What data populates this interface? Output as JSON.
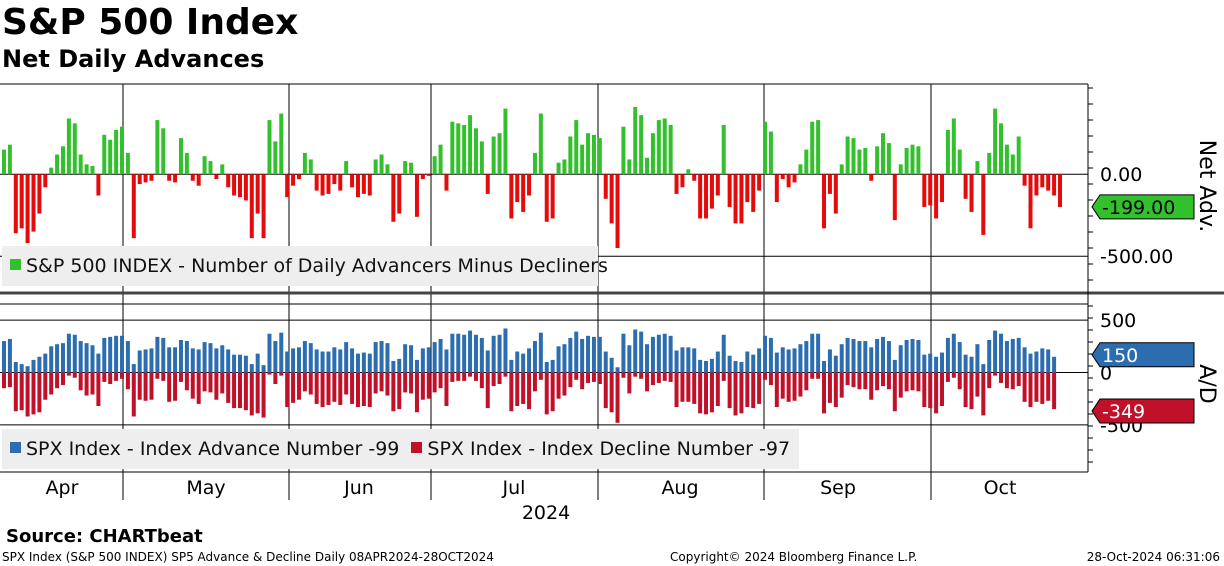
{
  "header": {
    "title": "S&P 500 Index",
    "subtitle": "Net Daily Advances"
  },
  "footer": {
    "source": "Source: CHARTbeat",
    "left": "SPX Index (S&P 500 INDEX) SP5 Advance & Decline  Daily 08APR2024-28OCT2024",
    "center": "Copyright© 2024 Bloomberg Finance L.P.",
    "right": "28-Oct-2024 06:31:06"
  },
  "colors": {
    "green": "#33c02d",
    "red": "#c1102a",
    "blue": "#2c6db0",
    "redBar": "#e50b0b"
  },
  "legend": {
    "top": "S&P 500 INDEX - Number of Daily Advancers Minus Decliners",
    "bottom_adv": "SPX Index  - Index Advance Number -99",
    "bottom_dec": "SPX Index  - Index Decline Number -97"
  },
  "chart_data": [
    {
      "type": "bar",
      "title": "Net Daily Advances",
      "ylabel": "Net Adv.",
      "ylim": [
        -700,
        550
      ],
      "yticks": [
        "0.00",
        "-500.00"
      ],
      "ytick_values": [
        0,
        -500
      ],
      "last_value_label": "-199.00",
      "values": [
        150,
        180,
        -360,
        -330,
        -420,
        -350,
        -240,
        -80,
        40,
        120,
        170,
        340,
        310,
        120,
        60,
        50,
        -130,
        240,
        210,
        270,
        290,
        130,
        -390,
        -60,
        -50,
        -40,
        330,
        280,
        -40,
        -50,
        220,
        130,
        -40,
        -70,
        110,
        80,
        -30,
        60,
        -80,
        -130,
        -140,
        -160,
        -390,
        -240,
        -390,
        330,
        200,
        370,
        -140,
        -70,
        -30,
        130,
        90,
        -100,
        -130,
        -120,
        -60,
        -100,
        80,
        -80,
        -140,
        -120,
        -130,
        90,
        120,
        60,
        -290,
        -240,
        80,
        70,
        -260,
        -30,
        -10,
        110,
        180,
        -100,
        320,
        310,
        300,
        360,
        280,
        200,
        -120,
        230,
        250,
        400,
        -270,
        -170,
        -230,
        -130,
        130,
        370,
        -290,
        -270,
        70,
        90,
        230,
        330,
        180,
        250,
        240,
        220,
        -150,
        -300,
        -450,
        290,
        90,
        410,
        360,
        100,
        250,
        330,
        340,
        300,
        -120,
        -80,
        30,
        -40,
        -270,
        -270,
        -210,
        -130,
        300,
        -200,
        -300,
        -300,
        -170,
        -230,
        -100,
        320,
        260,
        -170,
        -30,
        -80,
        -50,
        60,
        150,
        320,
        330,
        -330,
        -120,
        -240,
        60,
        230,
        220,
        150,
        160,
        -40,
        170,
        250,
        190,
        -280,
        60,
        160,
        180,
        170,
        -200,
        -190,
        -270,
        -170,
        270,
        340,
        150,
        -150,
        -230,
        80,
        -370,
        130,
        400,
        310,
        180,
        120,
        230,
        -70,
        -330,
        -130,
        -80,
        -100,
        -130,
        -200
      ]
    },
    {
      "type": "bar",
      "title": "Advance / Decline",
      "ylabel": "A/D",
      "ylim": [
        -950,
        730
      ],
      "yticks": [
        "500",
        "0",
        "-500"
      ],
      "ytick_values": [
        500,
        0,
        -500
      ],
      "last_value_labels": {
        "advance": "150",
        "decline": "-349"
      },
      "series": [
        {
          "name": "SPX Index  - Index Advance Number -99",
          "values": [
            300,
            320,
            100,
            80,
            60,
            120,
            150,
            180,
            250,
            270,
            280,
            370,
            360,
            300,
            280,
            260,
            180,
            330,
            340,
            350,
            350,
            300,
            80,
            210,
            220,
            230,
            340,
            330,
            240,
            240,
            310,
            300,
            230,
            220,
            290,
            280,
            230,
            260,
            220,
            170,
            170,
            160,
            80,
            180,
            70,
            370,
            300,
            380,
            200,
            230,
            240,
            300,
            280,
            220,
            200,
            200,
            240,
            220,
            290,
            230,
            180,
            190,
            180,
            290,
            300,
            280,
            110,
            130,
            270,
            260,
            120,
            230,
            240,
            290,
            320,
            220,
            370,
            370,
            360,
            400,
            360,
            330,
            210,
            350,
            360,
            420,
            120,
            200,
            180,
            230,
            300,
            380,
            100,
            120,
            250,
            270,
            330,
            390,
            320,
            350,
            340,
            340,
            200,
            140,
            50,
            370,
            260,
            410,
            390,
            270,
            340,
            360,
            370,
            350,
            210,
            240,
            240,
            230,
            120,
            110,
            130,
            200,
            360,
            160,
            110,
            100,
            200,
            170,
            230,
            350,
            330,
            190,
            240,
            220,
            230,
            270,
            300,
            370,
            370,
            110,
            220,
            160,
            270,
            330,
            320,
            300,
            300,
            240,
            320,
            340,
            300,
            120,
            260,
            310,
            320,
            310,
            170,
            180,
            150,
            190,
            330,
            370,
            290,
            170,
            150,
            270,
            80,
            310,
            400,
            370,
            300,
            320,
            330,
            240,
            180,
            200,
            230,
            220,
            150
          ]
        },
        {
          "name": "SPX Index  - Index Decline Number -97",
          "values": [
            -150,
            -140,
            -370,
            -360,
            -420,
            -400,
            -380,
            -260,
            -210,
            -150,
            -120,
            -30,
            -50,
            -170,
            -220,
            -210,
            -320,
            -90,
            -110,
            -80,
            -60,
            -160,
            -420,
            -260,
            -270,
            -260,
            -60,
            -80,
            -280,
            -270,
            -90,
            -170,
            -250,
            -300,
            -180,
            -190,
            -260,
            -200,
            -290,
            -340,
            -340,
            -360,
            -410,
            -390,
            -430,
            -20,
            -110,
            -30,
            -330,
            -290,
            -260,
            -180,
            -210,
            -300,
            -330,
            -310,
            -280,
            -310,
            -210,
            -300,
            -330,
            -320,
            -330,
            -200,
            -180,
            -220,
            -370,
            -350,
            -190,
            -200,
            -380,
            -260,
            -250,
            -190,
            -150,
            -320,
            -90,
            -80,
            -80,
            -40,
            -80,
            -150,
            -340,
            -130,
            -110,
            -40,
            -370,
            -320,
            -300,
            -350,
            -180,
            -70,
            -400,
            -370,
            -250,
            -220,
            -140,
            -70,
            -160,
            -100,
            -90,
            -110,
            -340,
            -380,
            -480,
            -50,
            -200,
            -40,
            -60,
            -180,
            -120,
            -100,
            -80,
            -90,
            -330,
            -280,
            -280,
            -300,
            -390,
            -400,
            -380,
            -320,
            -80,
            -340,
            -410,
            -390,
            -330,
            -340,
            -300,
            -70,
            -120,
            -330,
            -250,
            -280,
            -270,
            -230,
            -170,
            -60,
            -60,
            -390,
            -290,
            -330,
            -240,
            -120,
            -140,
            -160,
            -160,
            -260,
            -170,
            -130,
            -160,
            -370,
            -240,
            -180,
            -170,
            -180,
            -330,
            -340,
            -390,
            -320,
            -90,
            -50,
            -160,
            -330,
            -350,
            -230,
            -410,
            -150,
            -30,
            -100,
            -150,
            -160,
            -130,
            -280,
            -330,
            -280,
            -300,
            -270,
            -349
          ]
        }
      ]
    }
  ],
  "xaxis": {
    "months": [
      "Apr",
      "May",
      "Jun",
      "Jul",
      "Aug",
      "Sep",
      "Oct"
    ],
    "year": "2024"
  }
}
